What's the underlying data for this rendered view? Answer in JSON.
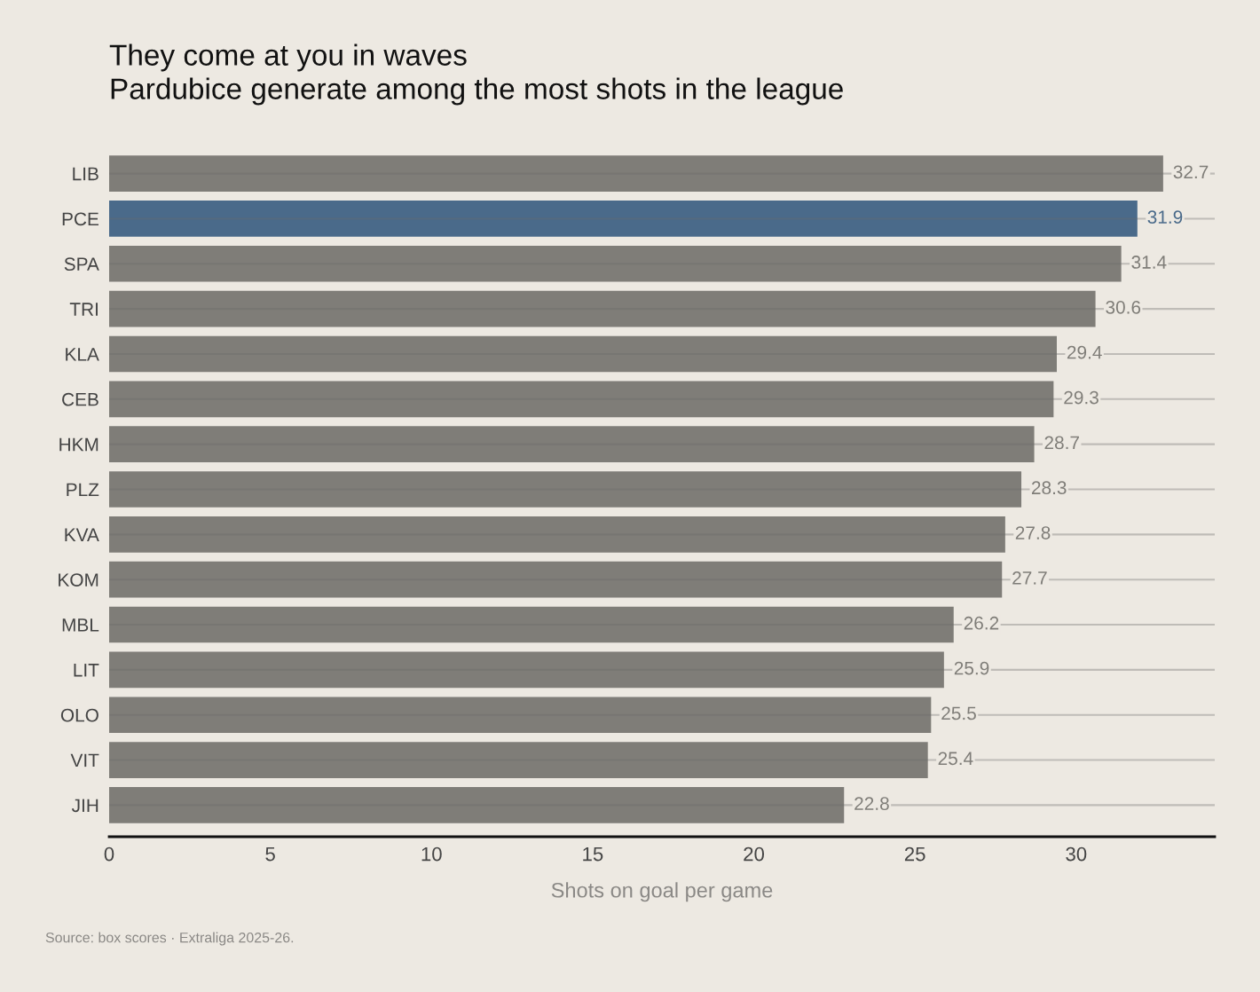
{
  "chart_data": {
    "type": "bar",
    "orientation": "horizontal",
    "title": "They come at you in waves",
    "subtitle": "Pardubice generate among the most shots in the league",
    "xlabel": "Shots on goal per game",
    "categories": [
      "LIB",
      "PCE",
      "SPA",
      "TRI",
      "KLA",
      "CEB",
      "HKM",
      "PLZ",
      "KVA",
      "KOM",
      "MBL",
      "LIT",
      "OLO",
      "VIT",
      "JIH"
    ],
    "values": [
      32.7,
      31.9,
      31.4,
      30.6,
      29.4,
      29.3,
      28.7,
      28.3,
      27.8,
      27.7,
      26.2,
      25.9,
      25.5,
      25.4,
      22.8
    ],
    "colors": [
      "#7f7d78",
      "#4a6a8a",
      "#7f7d78",
      "#7f7d78",
      "#7f7d78",
      "#7f7d78",
      "#7f7d78",
      "#7f7d78",
      "#7f7d78",
      "#7f7d78",
      "#7f7d78",
      "#7f7d78",
      "#7f7d78",
      "#7f7d78",
      "#7f7d78"
    ],
    "xlim": [
      0,
      34.3
    ],
    "xticks": [
      0,
      5,
      10,
      15,
      20,
      25,
      30
    ],
    "grid": "y",
    "data_labels": true,
    "annotations": [
      "Source: box scores · Extraliga 2025-26."
    ]
  }
}
